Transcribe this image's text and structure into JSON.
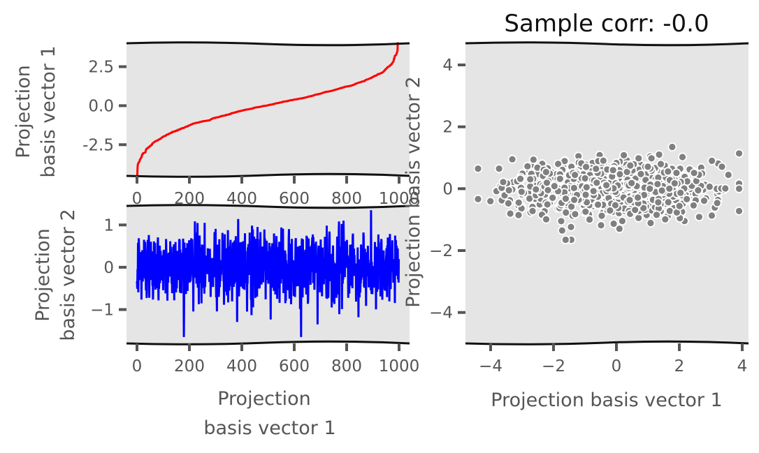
{
  "chart_data": [
    {
      "id": "top-left",
      "type": "line",
      "xlabel": "",
      "ylabel": [
        "Projection",
        "basis vector 1"
      ],
      "xlim": [
        -40,
        1040
      ],
      "ylim": [
        -4.5,
        4.0
      ],
      "xticks": [
        0,
        200,
        400,
        600,
        800,
        1000
      ],
      "xtick_labels": [
        "0",
        "200",
        "400",
        "600",
        "800",
        "1000"
      ],
      "yticks": [
        -2.5,
        0.0,
        2.5
      ],
      "ytick_labels": [
        "-2.5",
        "0.0",
        "2.5"
      ],
      "series": [
        {
          "color": "#ff0000",
          "n_points": 1000,
          "trend": "increasing sorted noise from about -4.2 to 3.8"
        }
      ]
    },
    {
      "id": "bottom-left",
      "type": "line",
      "xlabel": [
        "Projection",
        "basis vector 1"
      ],
      "ylabel": [
        "Projection",
        "basis vector 2"
      ],
      "xlim": [
        -40,
        1040
      ],
      "ylim": [
        -1.8,
        1.45
      ],
      "xticks": [
        0,
        200,
        400,
        600,
        800,
        1000
      ],
      "xtick_labels": [
        "0",
        "200",
        "400",
        "600",
        "800",
        "1000"
      ],
      "yticks": [
        -1,
        0,
        1
      ],
      "ytick_labels": [
        "−1",
        "0",
        "1"
      ],
      "series": [
        {
          "color": "#0000ff",
          "n_points": 1000,
          "trend": "noise around 0, range about -1.65 to 1.35"
        }
      ]
    },
    {
      "id": "right",
      "type": "scatter",
      "title": "Sample corr: -0.0",
      "xlabel": "Projection basis vector 1",
      "ylabel": "Projection basis vector 2",
      "xlim": [
        -4.8,
        4.2
      ],
      "ylim": [
        -5.0,
        4.7
      ],
      "xticks": [
        -4,
        -2,
        0,
        2,
        4
      ],
      "xtick_labels": [
        "−4",
        "−2",
        "0",
        "2",
        "4"
      ],
      "yticks": [
        -4,
        -2,
        0,
        2,
        4
      ],
      "ytick_labels": [
        "−4",
        "−2",
        "0",
        "2",
        "4"
      ],
      "point_color": "#808080",
      "edge_color": "#ffffff",
      "n_points": 1000,
      "x_range": [
        -4.4,
        3.9
      ],
      "y_range": [
        -1.65,
        1.35
      ]
    }
  ]
}
